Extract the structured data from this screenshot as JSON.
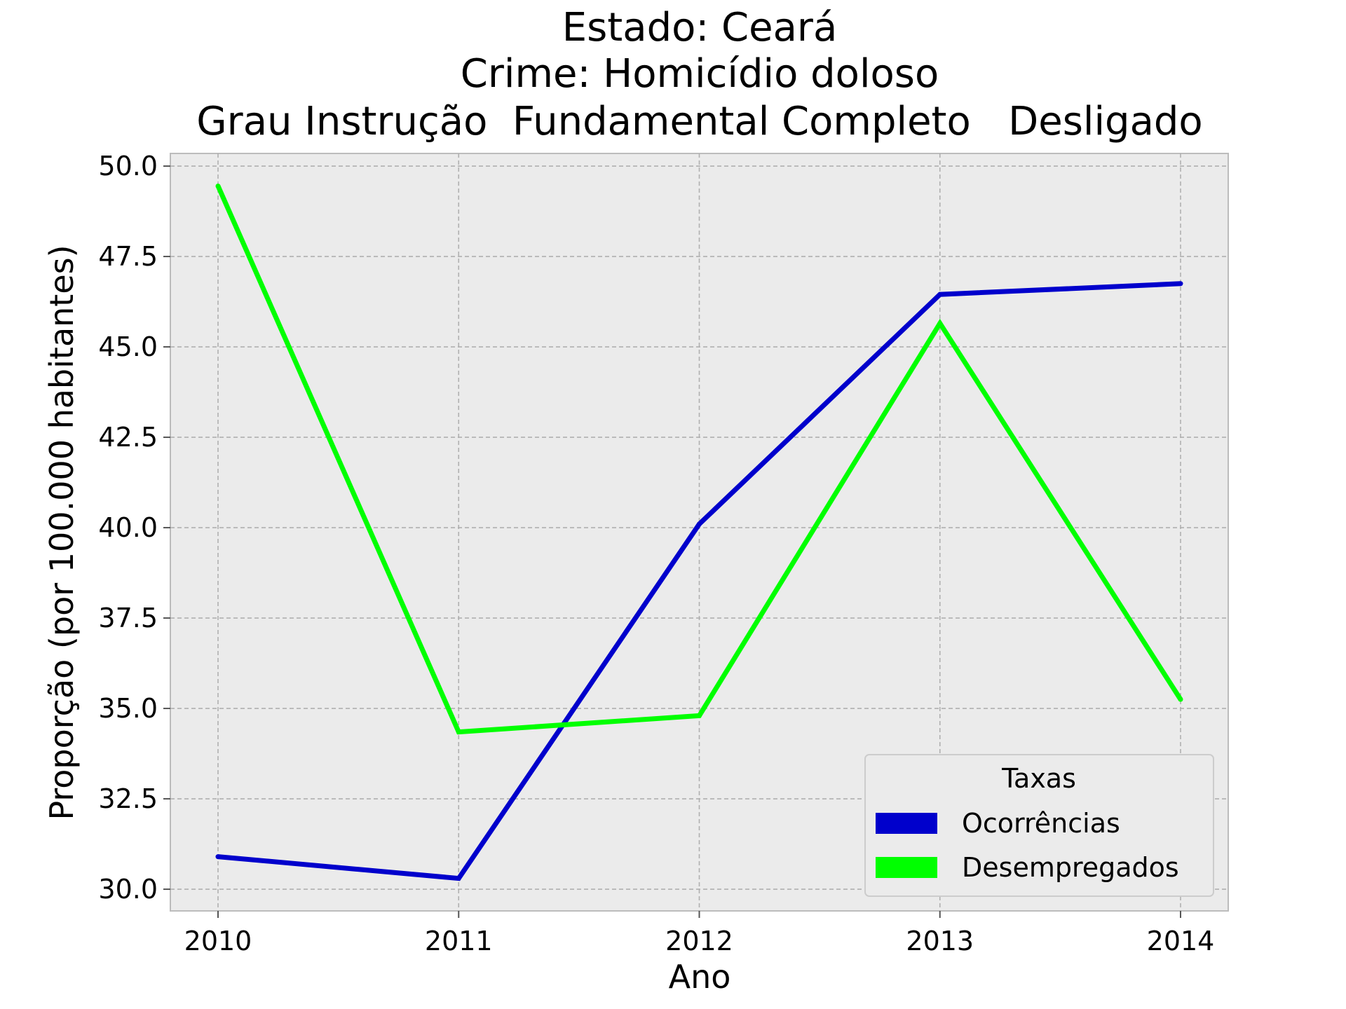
{
  "chart_data": {
    "type": "line",
    "title": [
      "Estado: Ceará",
      "Crime: Homicídio doloso",
      "Grau Instrução  Fundamental Completo   Desligado"
    ],
    "xlabel": "Ano",
    "ylabel": "Proporção (por 100.000 habitantes)",
    "categories": [
      "2010",
      "2011",
      "2012",
      "2013",
      "2014"
    ],
    "yticks": [
      "30.0",
      "32.5",
      "35.0",
      "37.5",
      "40.0",
      "42.5",
      "45.0",
      "47.5",
      "50.0"
    ],
    "ylim": [
      29.4,
      50.35
    ],
    "grid": true,
    "legend": {
      "title": "Taxas",
      "placement": "lower-right"
    },
    "series": [
      {
        "name": "Ocorrências",
        "color": "#0000cc",
        "values": [
          30.9,
          30.3,
          40.1,
          46.45,
          46.75
        ]
      },
      {
        "name": "Desempregados",
        "color": "#00ff00",
        "values": [
          49.45,
          34.35,
          34.8,
          45.65,
          35.25
        ]
      }
    ]
  }
}
